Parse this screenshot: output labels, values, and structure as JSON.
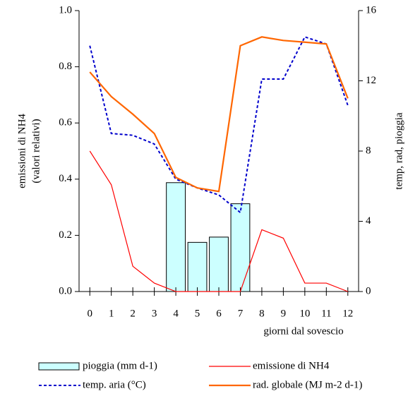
{
  "chart_data": {
    "type": "combo",
    "xlabel": "giorni dal sovescio",
    "ylabel": [
      "emissioni di NH4",
      "(valori relativi)"
    ],
    "y2label": "temp, rad, pioggia",
    "x": [
      0,
      1,
      2,
      3,
      4,
      5,
      6,
      7,
      8,
      9,
      10,
      11,
      12
    ],
    "xlim": [
      -0.5,
      12.5
    ],
    "xticks": [
      0,
      1,
      2,
      3,
      4,
      5,
      6,
      7,
      8,
      9,
      10,
      11,
      12
    ],
    "ylim": [
      0,
      1
    ],
    "yticks": [
      {
        "value": 0,
        "label": "0.0"
      },
      0.2,
      0.4,
      0.6,
      0.8,
      {
        "value": 1,
        "label": "1.0"
      }
    ],
    "y2lim": [
      0,
      16
    ],
    "y2ticks": [
      0,
      4,
      8,
      12,
      16
    ],
    "series": [
      {
        "name": "pioggia (mm d-1)",
        "type": "bar",
        "axis": "y2",
        "color": "#ccffff",
        "values": [
          null,
          null,
          null,
          null,
          6.2,
          2.8,
          3.1,
          5.0,
          null,
          null,
          null,
          null,
          null
        ]
      },
      {
        "name": "emissione di NH4",
        "type": "line",
        "axis": "y",
        "color": "#ff0000",
        "values": [
          0.5,
          0.38,
          0.09,
          0.03,
          0,
          0,
          0,
          0,
          0.22,
          0.19,
          0.03,
          0.03,
          0
        ]
      },
      {
        "name": "temp. aria (°C)",
        "type": "line",
        "axis": "y2",
        "color": "#0000cc",
        "style": "dashed",
        "values": [
          14.0,
          9.0,
          8.9,
          8.4,
          6.4,
          5.9,
          5.5,
          4.5,
          12.1,
          12.1,
          14.5,
          14.1,
          10.6
        ]
      },
      {
        "name": "rad. globale (MJ m-2 d-1)",
        "type": "line",
        "axis": "y2",
        "color": "#ff6600",
        "values": [
          12.5,
          11.1,
          10.1,
          9.0,
          6.5,
          5.9,
          5.7,
          14.0,
          14.5,
          14.3,
          14.2,
          14.1,
          11.0
        ]
      }
    ]
  }
}
